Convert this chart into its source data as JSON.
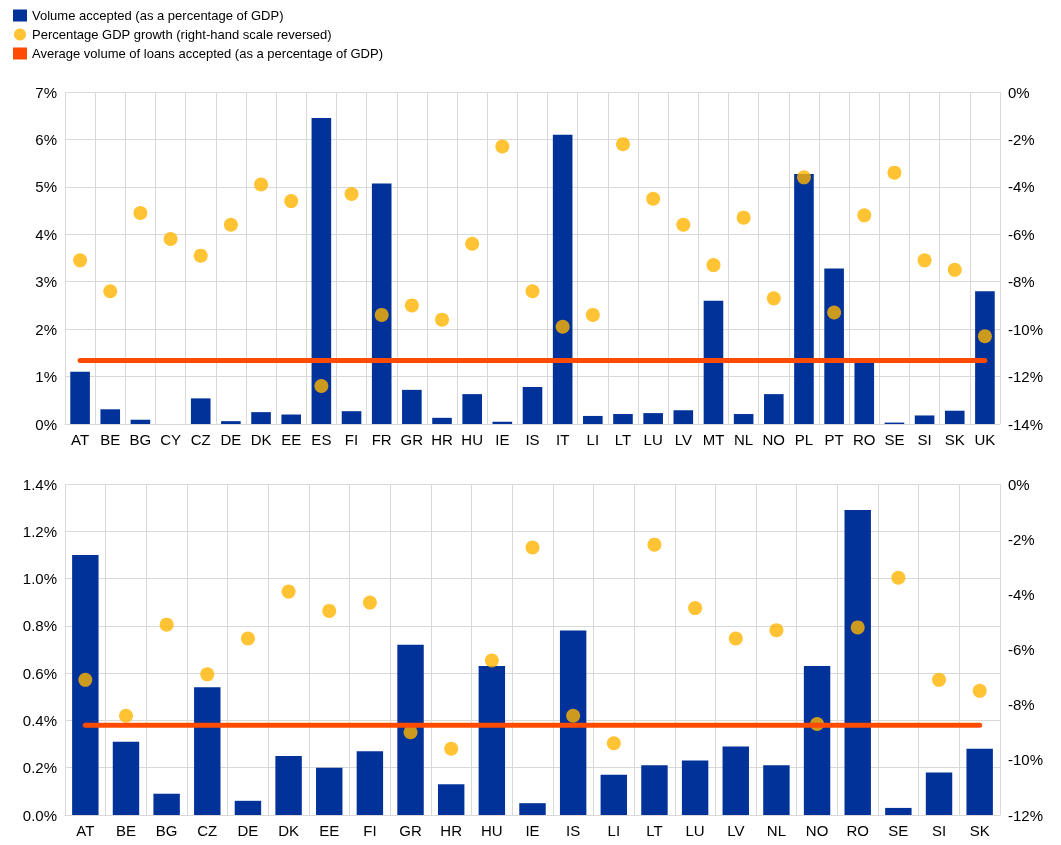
{
  "chart_data": [
    {
      "type": "bar",
      "categories": [
        "AT",
        "BE",
        "BG",
        "CY",
        "CZ",
        "DE",
        "DK",
        "EE",
        "ES",
        "FI",
        "FR",
        "GR",
        "HR",
        "HU",
        "IE",
        "IS",
        "IT",
        "LI",
        "LT",
        "LU",
        "LV",
        "MT",
        "NL",
        "NO",
        "PL",
        "PT",
        "RO",
        "SE",
        "SI",
        "SK",
        "UK"
      ],
      "series": [
        {
          "name": "Volume accepted (as a percentage of GDP)",
          "color": "#003299",
          "values": [
            1.1,
            0.31,
            0.09,
            0,
            0.54,
            0.06,
            0.25,
            0.2,
            6.45,
            0.27,
            5.07,
            0.72,
            0.13,
            0.63,
            0.05,
            0.78,
            6.1,
            0.17,
            0.21,
            0.23,
            0.29,
            2.6,
            0.21,
            0.63,
            5.27,
            3.28,
            1.29,
            0.03,
            0.18,
            0.28,
            2.8
          ]
        },
        {
          "name": "Percentage GDP growth (right-hand scale reversed)",
          "type": "scatter",
          "axis": "y2",
          "color": "#ffb400",
          "values": [
            -7.1,
            -8.4,
            -5.1,
            -6.2,
            -6.9,
            -5.6,
            -3.9,
            -4.6,
            -12.4,
            -4.3,
            -9.4,
            -9.0,
            -9.6,
            -6.4,
            -2.3,
            -8.4,
            -9.9,
            -9.4,
            -2.2,
            -4.5,
            -5.6,
            -7.3,
            -5.3,
            -8.7,
            -3.6,
            -9.3,
            -5.2,
            -3.4,
            -7.1,
            -7.5,
            -10.3
          ]
        },
        {
          "name": "Average volume of loans accepted (as a percentage of GDP)",
          "type": "line",
          "color": "#ff4b00",
          "marker": "none",
          "values": [
            1.34,
            1.34,
            1.34,
            1.34,
            1.34,
            1.34,
            1.34,
            1.34,
            1.34,
            1.34,
            1.34,
            1.34,
            1.34,
            1.34,
            1.34,
            1.34,
            1.34,
            1.34,
            1.34,
            1.34,
            1.34,
            1.34,
            1.34,
            1.34,
            1.34,
            1.34,
            1.34,
            1.34,
            1.34,
            1.34,
            1.34
          ]
        }
      ],
      "ylim": [
        0,
        7
      ],
      "yticks": [
        {
          "value": 0,
          "label": "0%"
        },
        {
          "value": 1,
          "label": "1%"
        },
        {
          "value": 2,
          "label": "2%"
        },
        {
          "value": 3,
          "label": "3%"
        },
        {
          "value": 4,
          "label": "4%"
        },
        {
          "value": 5,
          "label": "5%"
        },
        {
          "value": 6,
          "label": "6%"
        },
        {
          "value": 7,
          "label": "7%"
        }
      ],
      "y2lim": [
        -14,
        0
      ],
      "y2ticks": [
        {
          "value": 0,
          "label": "0%"
        },
        {
          "value": -2,
          "label": "-2%"
        },
        {
          "value": -4,
          "label": "-4%"
        },
        {
          "value": -6,
          "label": "-6%"
        },
        {
          "value": -8,
          "label": "-8%"
        },
        {
          "value": -10,
          "label": "-10%"
        },
        {
          "value": -12,
          "label": "-12%"
        },
        {
          "value": -14,
          "label": "-14%"
        }
      ],
      "grid": true,
      "legend": "top left"
    },
    {
      "type": "bar",
      "categories": [
        "AT",
        "BE",
        "BG",
        "CZ",
        "DE",
        "DK",
        "EE",
        "FI",
        "GR",
        "HR",
        "HU",
        "IE",
        "IS",
        "LI",
        "LT",
        "LU",
        "LV",
        "NL",
        "NO",
        "RO",
        "SE",
        "SI",
        "SK"
      ],
      "series": [
        {
          "color": "#003299",
          "values": [
            1.1,
            0.31,
            0.09,
            0.54,
            0.06,
            0.25,
            0.2,
            0.27,
            0.72,
            0.13,
            0.63,
            0.05,
            0.78,
            0.17,
            0.21,
            0.23,
            0.29,
            0.21,
            0.63,
            1.29,
            0.03,
            0.18,
            0.28
          ]
        },
        {
          "type": "scatter",
          "axis": "y2",
          "color": "#ffb400",
          "values": [
            -7.1,
            -8.4,
            -5.1,
            -6.9,
            -5.6,
            -3.9,
            -4.6,
            -4.3,
            -9.0,
            -9.6,
            -6.4,
            -2.3,
            -8.4,
            -9.4,
            -2.2,
            -4.5,
            -5.6,
            -5.3,
            -8.7,
            -5.2,
            -3.4,
            -7.1,
            -7.5
          ]
        },
        {
          "type": "line",
          "color": "#ff4b00",
          "marker": "none",
          "values": [
            0.38,
            0.38,
            0.38,
            0.38,
            0.38,
            0.38,
            0.38,
            0.38,
            0.38,
            0.38,
            0.38,
            0.38,
            0.38,
            0.38,
            0.38,
            0.38,
            0.38,
            0.38,
            0.38,
            0.38,
            0.38,
            0.38,
            0.38
          ]
        }
      ],
      "ylim": [
        0,
        1.4
      ],
      "yticks": [
        {
          "value": 0,
          "label": "0.0%"
        },
        {
          "value": 0.2,
          "label": "0.2%"
        },
        {
          "value": 0.4,
          "label": "0.4%"
        },
        {
          "value": 0.6,
          "label": "0.6%"
        },
        {
          "value": 0.8,
          "label": "0.8%"
        },
        {
          "value": 1.0,
          "label": "1.0%"
        },
        {
          "value": 1.2,
          "label": "1.2%"
        },
        {
          "value": 1.4,
          "label": "1.4%"
        }
      ],
      "y2lim": [
        -12,
        0
      ],
      "y2ticks": [
        {
          "value": 0,
          "label": "0%"
        },
        {
          "value": -2,
          "label": "-2%"
        },
        {
          "value": -4,
          "label": "-4%"
        },
        {
          "value": -6,
          "label": "-6%"
        },
        {
          "value": -8,
          "label": "-8%"
        },
        {
          "value": -10,
          "label": "-10%"
        },
        {
          "value": -12,
          "label": "-12%"
        }
      ],
      "grid": true
    }
  ]
}
